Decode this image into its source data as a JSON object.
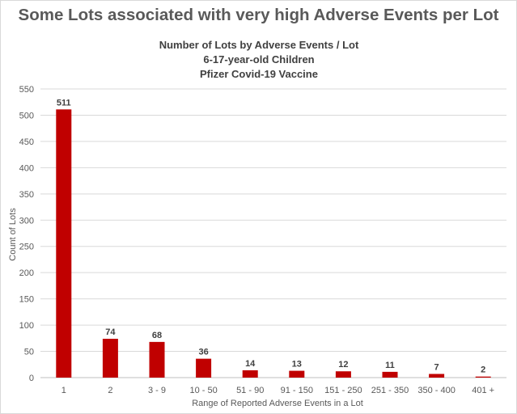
{
  "page": {
    "headline": "Some Lots associated with very high Adverse Events per Lot"
  },
  "chart_data": {
    "type": "bar",
    "title_lines": [
      "Number of Lots by Adverse Events / Lot",
      "6-17-year-old Children",
      "Pfizer Covid-19 Vaccine"
    ],
    "xlabel": "Range of Reported Adverse Events in a Lot",
    "ylabel": "Count of Lots",
    "categories": [
      "1",
      "2",
      "3 - 9",
      "10 - 50",
      "51 - 90",
      "91 - 150",
      "151 - 250",
      "251 - 350",
      "350 - 400",
      "401 +"
    ],
    "values": [
      511,
      74,
      68,
      36,
      14,
      13,
      12,
      11,
      7,
      2
    ],
    "data_labels": [
      "511",
      "74",
      "68",
      "36",
      "14",
      "13",
      "12",
      "11",
      "7",
      "2"
    ],
    "ylim": [
      0,
      550
    ],
    "yticks": [
      0,
      50,
      100,
      150,
      200,
      250,
      300,
      350,
      400,
      450,
      500,
      550
    ],
    "grid": true,
    "legend": "none",
    "colors": {
      "bar": "#c00000",
      "grid": "#d9d9d9",
      "axis": "#bfbfbf"
    }
  }
}
